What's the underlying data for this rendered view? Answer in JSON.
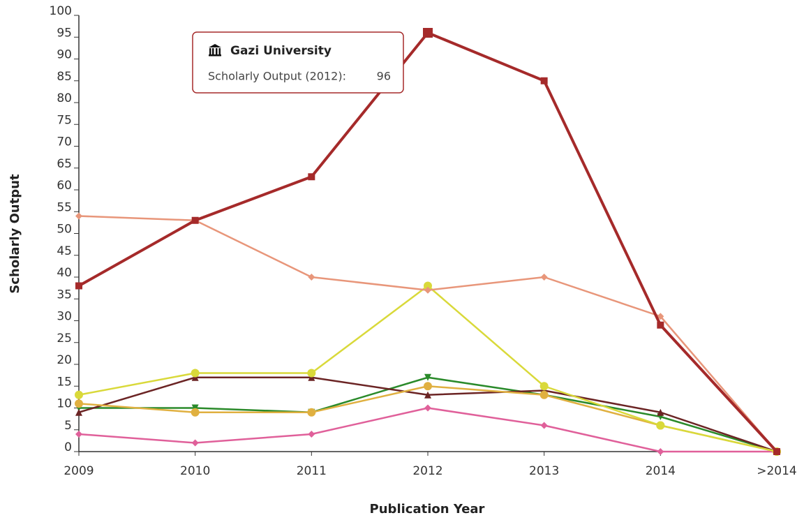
{
  "chart_data": {
    "type": "line",
    "x_label": "Publication Year",
    "y_label": "Scholarly Output",
    "categories": [
      "2009",
      "2010",
      "2011",
      "2012",
      "2013",
      "2014",
      ">2014"
    ],
    "ylim": [
      0,
      100
    ],
    "yticks": [
      0,
      5,
      10,
      15,
      20,
      25,
      30,
      35,
      40,
      45,
      50,
      55,
      60,
      65,
      70,
      75,
      80,
      85,
      90,
      95,
      100
    ],
    "series": [
      {
        "name": "Gazi University",
        "color": "#a52a2a",
        "marker": "square",
        "values": [
          38,
          53,
          63,
          96,
          85,
          29,
          0
        ]
      },
      {
        "color": "#e8967a",
        "marker": "diamond",
        "values": [
          54,
          53,
          40,
          37,
          40,
          31,
          0
        ]
      },
      {
        "color": "#d9d93a",
        "marker": "circle",
        "values": [
          13,
          18,
          18,
          38,
          15,
          6,
          0
        ]
      },
      {
        "color": "#e0b040",
        "marker": "circle",
        "values": [
          11,
          9,
          9,
          15,
          13,
          6,
          0
        ]
      },
      {
        "color": "#6b2424",
        "marker": "triangle-up",
        "values": [
          9,
          17,
          17,
          13,
          14,
          9,
          0
        ]
      },
      {
        "color": "#2a8a2a",
        "marker": "triangle-down",
        "values": [
          10,
          10,
          9,
          17,
          13,
          8,
          0
        ]
      },
      {
        "color": "#e0609a",
        "marker": "diamond",
        "values": [
          4,
          2,
          4,
          10,
          6,
          0,
          0
        ]
      }
    ],
    "tooltip": {
      "series": 0,
      "index": 3,
      "label": "Scholarly Output (2012):"
    }
  }
}
